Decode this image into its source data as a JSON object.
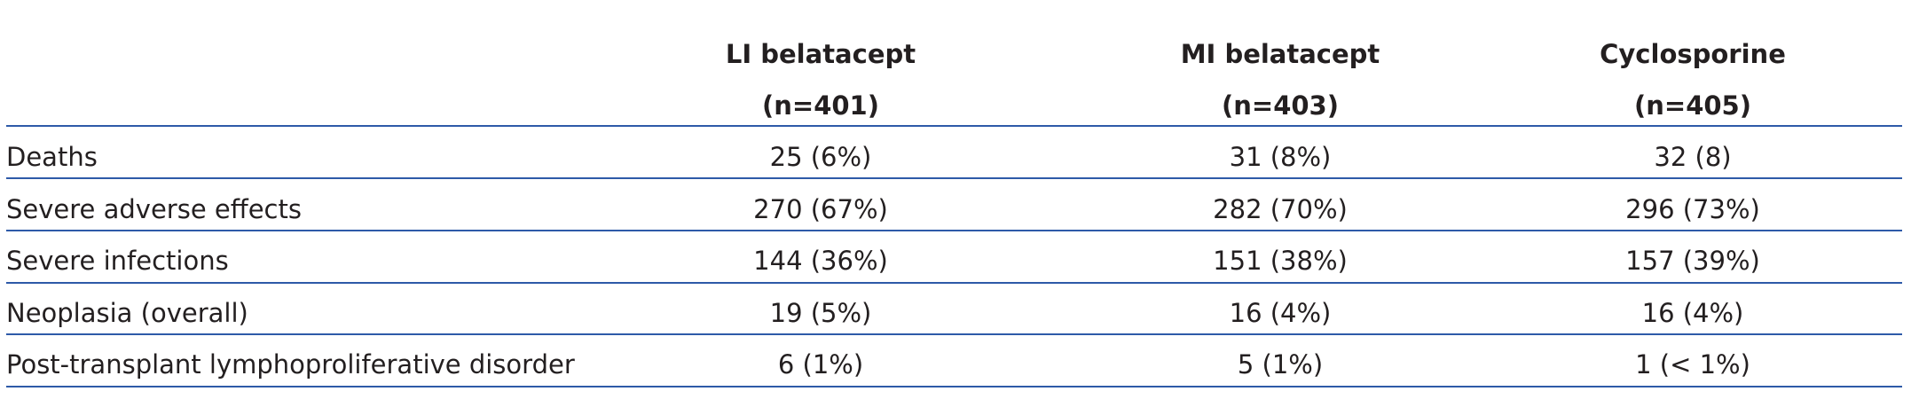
{
  "table": {
    "columns": [
      {
        "name": "LI belatacept",
        "n": "(n=401)"
      },
      {
        "name": "MI belatacept",
        "n": "(n=403)"
      },
      {
        "name": "Cyclosporine",
        "n": "(n=405)"
      }
    ],
    "rows": [
      [
        "Deaths",
        "25 (6%)",
        "31 (8%)",
        "32 (8)"
      ],
      [
        "Severe adverse effects",
        "270 (67%)",
        "282 (70%)",
        "296 (73%)"
      ],
      [
        "Severe infections",
        "144 (36%)",
        "151 (38%)",
        "157 (39%)"
      ],
      [
        "Neoplasia (overall)",
        "19 (5%)",
        "16 (4%)",
        "16 (4%)"
      ],
      [
        "Post-transplant lymphoproliferative disorder",
        "6 (1%)",
        "5 (1%)",
        "1 (< 1%)"
      ]
    ]
  }
}
